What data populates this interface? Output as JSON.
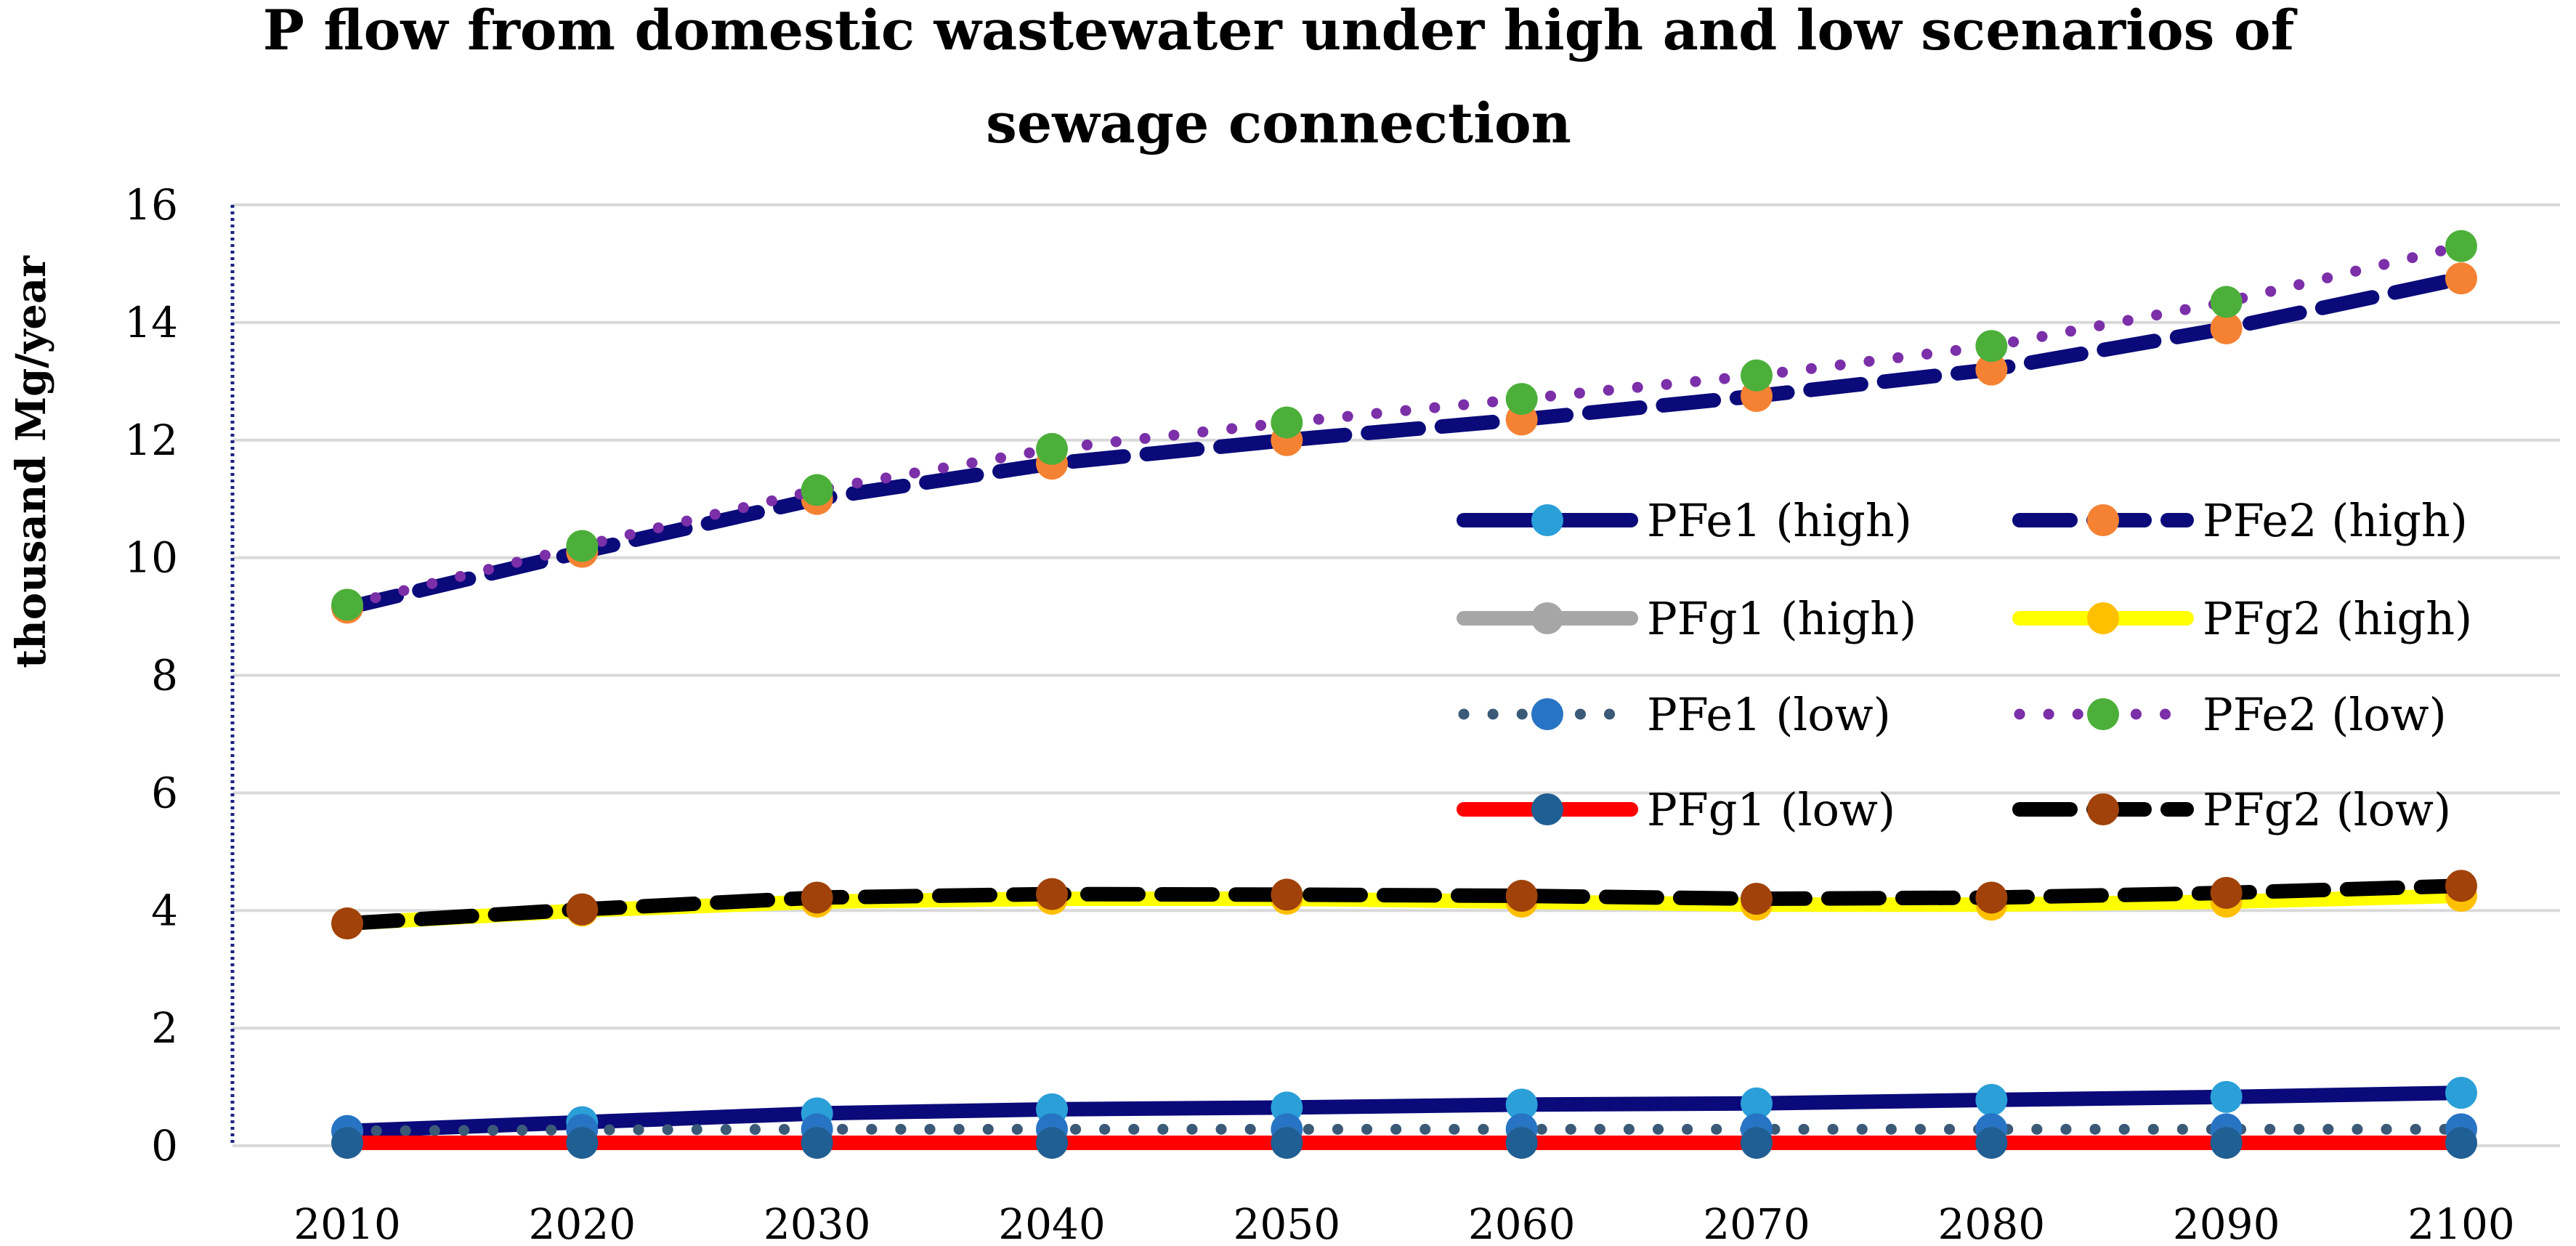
{
  "chart_data": {
    "type": "line",
    "title_line1": "P flow from domestic wastewater under high and low scenarios of",
    "title_line2": "sewage connection",
    "ylabel": "thousand Mg/year",
    "xlabel": "",
    "ylim": [
      0,
      16
    ],
    "yticks": [
      "0",
      "2",
      "4",
      "6",
      "8",
      "10",
      "12",
      "14",
      "16"
    ],
    "categories": [
      "2010",
      "2020",
      "2030",
      "2040",
      "2050",
      "2060",
      "2070",
      "2080",
      "2090",
      "2100"
    ],
    "grid": true,
    "legend_position": "right",
    "series": [
      {
        "name": "PFe1 (high)",
        "line_color": "#0a0a7a",
        "marker_color": "#2a9fd8",
        "dash": "solid",
        "values": [
          0.25,
          0.4,
          0.55,
          0.62,
          0.65,
          0.7,
          0.72,
          0.78,
          0.83,
          0.9
        ]
      },
      {
        "name": "PFe2 (high)",
        "line_color": "#0a0a7a",
        "marker_color": "#f58233",
        "dash": "longdash",
        "values": [
          9.15,
          10.1,
          11.0,
          11.6,
          12.0,
          12.35,
          12.75,
          13.2,
          13.9,
          14.75
        ]
      },
      {
        "name": "PFg1 (high)",
        "line_color": "#a6a6a6",
        "marker_color": "#a6a6a6",
        "dash": "solid",
        "values": [
          0.05,
          0.05,
          0.05,
          0.05,
          0.05,
          0.05,
          0.05,
          0.05,
          0.05,
          0.05
        ]
      },
      {
        "name": "PFg2 (high)",
        "line_color": "#ffff00",
        "marker_color": "#ffc000",
        "dash": "solid",
        "values": [
          3.78,
          4.0,
          4.15,
          4.2,
          4.2,
          4.15,
          4.1,
          4.1,
          4.15,
          4.25
        ]
      },
      {
        "name": "PFe1 (low)",
        "line_color": "#3b5a78",
        "marker_color": "#2874c4",
        "dash": "dot",
        "values": [
          0.25,
          0.27,
          0.28,
          0.28,
          0.28,
          0.28,
          0.28,
          0.28,
          0.28,
          0.28
        ]
      },
      {
        "name": "PFe2 (low)",
        "line_color": "#7b2fa8",
        "marker_color": "#4caf3a",
        "dash": "dot",
        "values": [
          9.2,
          10.2,
          11.15,
          11.85,
          12.3,
          12.7,
          13.1,
          13.6,
          14.35,
          15.3
        ]
      },
      {
        "name": "PFg1 (low)",
        "line_color": "#ff0000",
        "marker_color": "#1f5f94",
        "dash": "solid",
        "values": [
          0.05,
          0.05,
          0.05,
          0.05,
          0.05,
          0.05,
          0.05,
          0.05,
          0.05,
          0.05
        ]
      },
      {
        "name": "PFg2 (low)",
        "line_color": "#000000",
        "marker_color": "#a0420a",
        "dash": "longdash",
        "values": [
          3.78,
          4.02,
          4.22,
          4.28,
          4.27,
          4.25,
          4.2,
          4.22,
          4.3,
          4.42
        ]
      }
    ]
  }
}
